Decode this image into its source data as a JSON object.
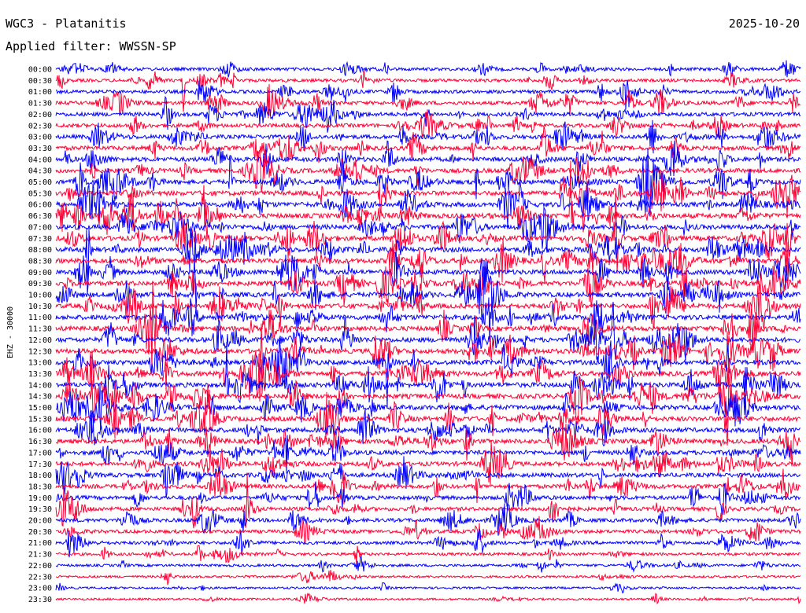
{
  "header": {
    "station": "WGC3 - Platanitis",
    "filter": "Applied filter: WWSSN-SP",
    "date": "2025-10-20"
  },
  "chart_data": {
    "type": "line",
    "ylabel": "EHZ - 30000",
    "rows": [
      "00:00",
      "00:30",
      "01:00",
      "01:30",
      "02:00",
      "02:30",
      "03:00",
      "03:30",
      "04:00",
      "04:30",
      "05:00",
      "05:30",
      "06:00",
      "06:30",
      "07:00",
      "07:30",
      "08:00",
      "08:30",
      "09:00",
      "09:30",
      "10:00",
      "10:30",
      "11:00",
      "11:30",
      "12:00",
      "12:30",
      "13:00",
      "13:30",
      "14:00",
      "14:30",
      "15:00",
      "15:30",
      "16:00",
      "16:30",
      "17:00",
      "17:30",
      "18:00",
      "18:30",
      "19:00",
      "19:30",
      "20:00",
      "20:30",
      "21:00",
      "21:30",
      "22:00",
      "22:30",
      "23:00",
      "23:30"
    ],
    "trace_colors": [
      "#0000ff",
      "#ff0033"
    ],
    "activity": [
      0.55,
      0.55,
      0.6,
      0.7,
      0.75,
      0.75,
      0.8,
      0.85,
      0.9,
      0.9,
      0.95,
      1,
      1,
      1,
      1,
      1,
      1,
      1,
      1,
      1,
      1,
      1,
      1,
      1,
      1,
      1,
      1,
      1,
      1,
      1,
      1,
      1,
      0.95,
      0.95,
      0.9,
      0.85,
      0.85,
      0.8,
      0.75,
      0.75,
      0.7,
      0.65,
      0.55,
      0.45,
      0.35,
      0.3,
      0.25,
      0.25
    ]
  }
}
